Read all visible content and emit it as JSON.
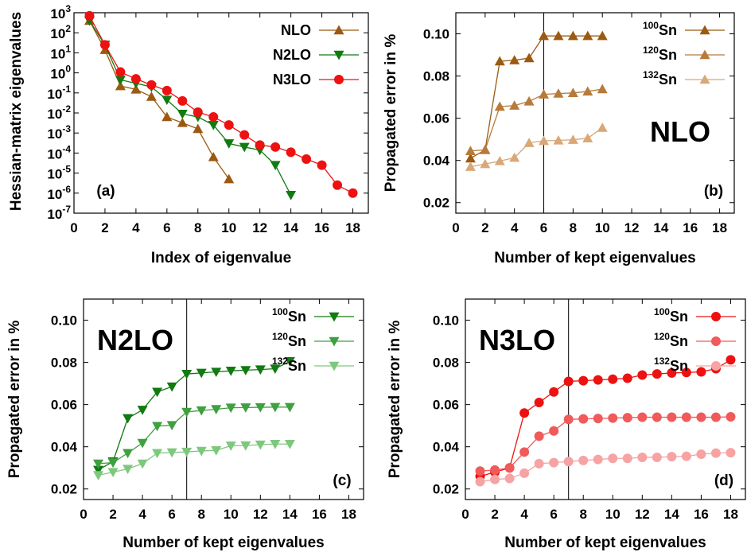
{
  "colors": {
    "NLO": [
      "#9b5a12",
      "#b87a3a",
      "#d9a878"
    ],
    "N2LO": [
      "#117a11",
      "#3fa03f",
      "#7ec87e"
    ],
    "N3LO": [
      "#ee1111",
      "#f05a5a",
      "#f7a3a3"
    ]
  },
  "chart_data": [
    {
      "type": "line",
      "panel": "(a)",
      "xlabel": "Index of eigenvalue",
      "ylabel": "Hessian-matrix eigenvalues",
      "xlim": [
        0,
        19
      ],
      "ylim": [
        -7,
        3
      ],
      "yscale": "log",
      "xticks": [
        "0",
        "2",
        "4",
        "6",
        "8",
        "10",
        "12",
        "14",
        "16",
        "18"
      ],
      "yticks": [
        {
          "base": "10",
          "exp": "-7"
        },
        {
          "base": "10",
          "exp": "-6"
        },
        {
          "base": "10",
          "exp": "-5"
        },
        {
          "base": "10",
          "exp": "-4"
        },
        {
          "base": "10",
          "exp": "-3"
        },
        {
          "base": "10",
          "exp": "-2"
        },
        {
          "base": "10",
          "exp": "-1"
        },
        {
          "base": "10",
          "exp": "0"
        },
        {
          "base": "10",
          "exp": "1"
        },
        {
          "base": "10",
          "exp": "2"
        },
        {
          "base": "10",
          "exp": "3"
        }
      ],
      "legend_position": "top-right",
      "series": [
        {
          "name": "NLO",
          "marker": "triangle-up",
          "color": "#9b5a12",
          "x": [
            1,
            2,
            3,
            4,
            5,
            6,
            7,
            8,
            9,
            10
          ],
          "y": [
            400,
            14,
            0.22,
            0.15,
            0.065,
            0.0063,
            0.0032,
            0.0016,
            6.3e-05,
            5e-06
          ]
        },
        {
          "name": "N2LO",
          "marker": "triangle-down",
          "color": "#117a11",
          "x": [
            1,
            2,
            3,
            4,
            5,
            6,
            7,
            8,
            9,
            10,
            11,
            12,
            13,
            14
          ],
          "y": [
            400,
            25,
            0.45,
            0.3,
            0.2,
            0.045,
            0.009,
            0.0063,
            0.0025,
            0.0003,
            0.0002,
            0.00014,
            2.5e-05,
            8e-07
          ]
        },
        {
          "name": "N3LO",
          "marker": "circle",
          "color": "#ee1111",
          "x": [
            1,
            2,
            3,
            4,
            5,
            6,
            7,
            8,
            9,
            10,
            11,
            12,
            13,
            14,
            15,
            16,
            17,
            18
          ],
          "y": [
            700,
            25,
            1.1,
            0.5,
            0.25,
            0.13,
            0.04,
            0.011,
            0.0063,
            0.0025,
            0.0008,
            0.00025,
            0.0002,
            0.00011,
            5e-05,
            2.5e-05,
            2.5e-06,
            1e-06
          ]
        }
      ]
    },
    {
      "type": "line",
      "panel": "(b)",
      "title": "NLO",
      "xlabel": "Number of kept eigenvalues",
      "ylabel": "Propagated error in %",
      "xlim": [
        0,
        19
      ],
      "ylim": [
        0.015,
        0.11
      ],
      "xticks": [
        "0",
        "2",
        "4",
        "6",
        "8",
        "10",
        "12",
        "14",
        "16",
        "18"
      ],
      "yticks": [
        "0.02",
        "0.04",
        "0.06",
        "0.08",
        "0.10"
      ],
      "vline": 6,
      "legend_position": "top-right",
      "series": [
        {
          "name": "Sn",
          "mass": "100",
          "marker": "triangle-up",
          "x": [
            1,
            2,
            3,
            4,
            5,
            6,
            7,
            8,
            9,
            10
          ],
          "y": [
            0.041,
            0.045,
            0.087,
            0.0875,
            0.0885,
            0.099,
            0.099,
            0.099,
            0.099,
            0.099
          ]
        },
        {
          "name": "Sn",
          "mass": "120",
          "marker": "triangle-up",
          "x": [
            1,
            2,
            3,
            4,
            5,
            6,
            7,
            8,
            9,
            10
          ],
          "y": [
            0.0445,
            0.045,
            0.0655,
            0.066,
            0.068,
            0.0713,
            0.0717,
            0.072,
            0.0727,
            0.0738
          ]
        },
        {
          "name": "Sn",
          "mass": "132",
          "marker": "triangle-up",
          "x": [
            1,
            2,
            3,
            4,
            5,
            6,
            7,
            8,
            9,
            10
          ],
          "y": [
            0.037,
            0.0383,
            0.0397,
            0.0413,
            0.0483,
            0.0493,
            0.0495,
            0.0498,
            0.0505,
            0.0555
          ]
        }
      ]
    },
    {
      "type": "line",
      "panel": "(c)",
      "title": "N2LO",
      "xlabel": "Number of kept eigenvalues",
      "ylabel": "Propagated error in %",
      "xlim": [
        0,
        19
      ],
      "ylim": [
        0.015,
        0.11
      ],
      "xticks": [
        "0",
        "2",
        "4",
        "6",
        "8",
        "10",
        "12",
        "14",
        "16",
        "18"
      ],
      "yticks": [
        "0.02",
        "0.04",
        "0.06",
        "0.08",
        "0.10"
      ],
      "vline": 7,
      "legend_position": "top-right",
      "series": [
        {
          "name": "Sn",
          "mass": "100",
          "marker": "triangle-down",
          "x": [
            1,
            2,
            3,
            4,
            5,
            6,
            7,
            8,
            9,
            10,
            11,
            12,
            13,
            14
          ],
          "y": [
            0.029,
            0.033,
            0.0535,
            0.0575,
            0.066,
            0.0685,
            0.0745,
            0.075,
            0.0755,
            0.076,
            0.0763,
            0.0766,
            0.077,
            0.0805
          ]
        },
        {
          "name": "Sn",
          "mass": "120",
          "marker": "triangle-down",
          "x": [
            1,
            2,
            3,
            4,
            5,
            6,
            7,
            8,
            9,
            10,
            11,
            12,
            13,
            14
          ],
          "y": [
            0.032,
            0.0325,
            0.037,
            0.0418,
            0.0498,
            0.0502,
            0.0565,
            0.0572,
            0.0578,
            0.0585,
            0.0586,
            0.0587,
            0.0588,
            0.0588
          ]
        },
        {
          "name": "Sn",
          "mass": "132",
          "marker": "triangle-down",
          "x": [
            1,
            2,
            3,
            4,
            5,
            6,
            7,
            8,
            9,
            10,
            11,
            12,
            13,
            14
          ],
          "y": [
            0.0265,
            0.028,
            0.0295,
            0.032,
            0.037,
            0.0373,
            0.0376,
            0.038,
            0.0383,
            0.0405,
            0.0406,
            0.041,
            0.0413,
            0.0413
          ]
        }
      ]
    },
    {
      "type": "line",
      "panel": "(d)",
      "title": "N3LO",
      "xlabel": "Number of kept eigenvalues",
      "ylabel": "Propagated error in %",
      "xlim": [
        0,
        19
      ],
      "ylim": [
        0.015,
        0.11
      ],
      "xticks": [
        "0",
        "2",
        "4",
        "6",
        "8",
        "10",
        "12",
        "14",
        "16",
        "18"
      ],
      "yticks": [
        "0.02",
        "0.04",
        "0.06",
        "0.08",
        "0.10"
      ],
      "vline": 7,
      "legend_position": "top-right",
      "series": [
        {
          "name": "Sn",
          "mass": "100",
          "marker": "circle",
          "x": [
            1,
            2,
            3,
            4,
            5,
            6,
            7,
            8,
            9,
            10,
            11,
            12,
            13,
            14,
            15,
            16,
            17,
            18
          ],
          "y": [
            0.026,
            0.028,
            0.03,
            0.056,
            0.061,
            0.066,
            0.071,
            0.0713,
            0.0717,
            0.072,
            0.0725,
            0.074,
            0.0745,
            0.075,
            0.0752,
            0.0755,
            0.077,
            0.0812
          ]
        },
        {
          "name": "Sn",
          "mass": "120",
          "marker": "circle",
          "x": [
            1,
            2,
            3,
            4,
            5,
            6,
            7,
            8,
            9,
            10,
            11,
            12,
            13,
            14,
            15,
            16,
            17,
            18
          ],
          "y": [
            0.0285,
            0.029,
            0.03,
            0.0375,
            0.045,
            0.0475,
            0.053,
            0.0532,
            0.0534,
            0.0536,
            0.0538,
            0.054,
            0.054,
            0.054,
            0.054,
            0.054,
            0.054,
            0.0542
          ]
        },
        {
          "name": "Sn",
          "mass": "132",
          "marker": "circle",
          "x": [
            1,
            2,
            3,
            4,
            5,
            6,
            7,
            8,
            9,
            10,
            11,
            12,
            13,
            14,
            15,
            16,
            17,
            18
          ],
          "y": [
            0.0235,
            0.0245,
            0.025,
            0.0275,
            0.032,
            0.0325,
            0.033,
            0.0335,
            0.034,
            0.0345,
            0.0345,
            0.035,
            0.035,
            0.0353,
            0.0355,
            0.0365,
            0.037,
            0.0372
          ]
        }
      ]
    }
  ]
}
